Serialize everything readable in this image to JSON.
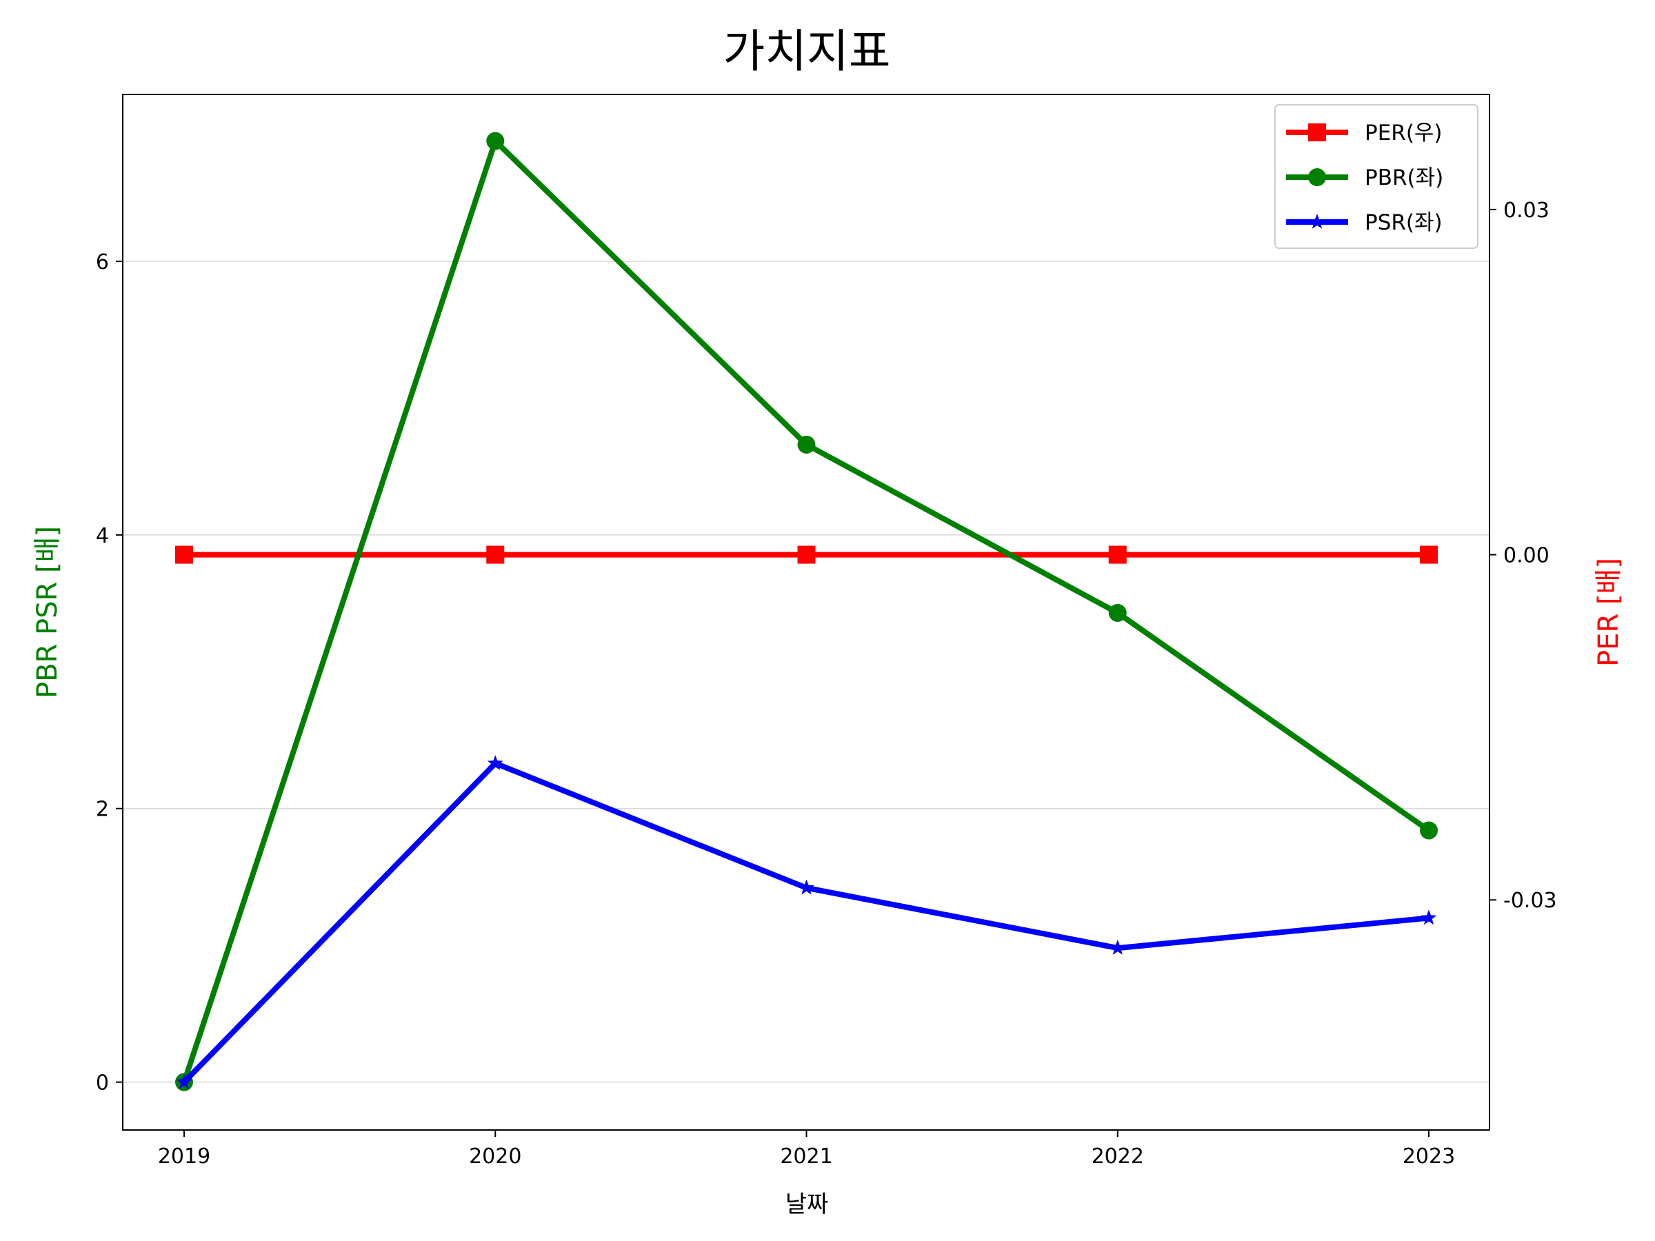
{
  "chart_data": {
    "type": "line",
    "title": "가치지표",
    "xlabel": "날짜",
    "ylabel_left": "PBR PSR [배]",
    "ylabel_right": "PER [배]",
    "categories": [
      "2019",
      "2020",
      "2021",
      "2022",
      "2023"
    ],
    "left_axis": {
      "ylim": [
        -0.35,
        7.22
      ],
      "ticks": [
        0,
        2,
        4,
        6
      ],
      "tick_labels": [
        "0",
        "2",
        "4",
        "6"
      ],
      "label_color": "#008000"
    },
    "right_axis": {
      "ylim": [
        -0.05,
        0.04
      ],
      "ticks": [
        -0.03,
        0.0,
        0.03
      ],
      "tick_labels": [
        "-0.03",
        "0.00",
        "0.03"
      ],
      "label_color": "#ff0000"
    },
    "grid": "horizontal",
    "legend_position": "top-right",
    "series": [
      {
        "name": "PER(우)",
        "axis": "right",
        "color": "#ff0000",
        "marker": "square",
        "values": [
          0,
          0,
          0,
          0,
          0
        ]
      },
      {
        "name": "PBR(좌)",
        "axis": "left",
        "color": "#008000",
        "marker": "circle",
        "values": [
          0.0,
          6.88,
          4.66,
          3.43,
          1.84
        ]
      },
      {
        "name": "PSR(좌)",
        "axis": "left",
        "color": "#0000ff",
        "marker": "star",
        "values": [
          0.0,
          2.33,
          1.42,
          0.98,
          1.2
        ]
      }
    ]
  }
}
